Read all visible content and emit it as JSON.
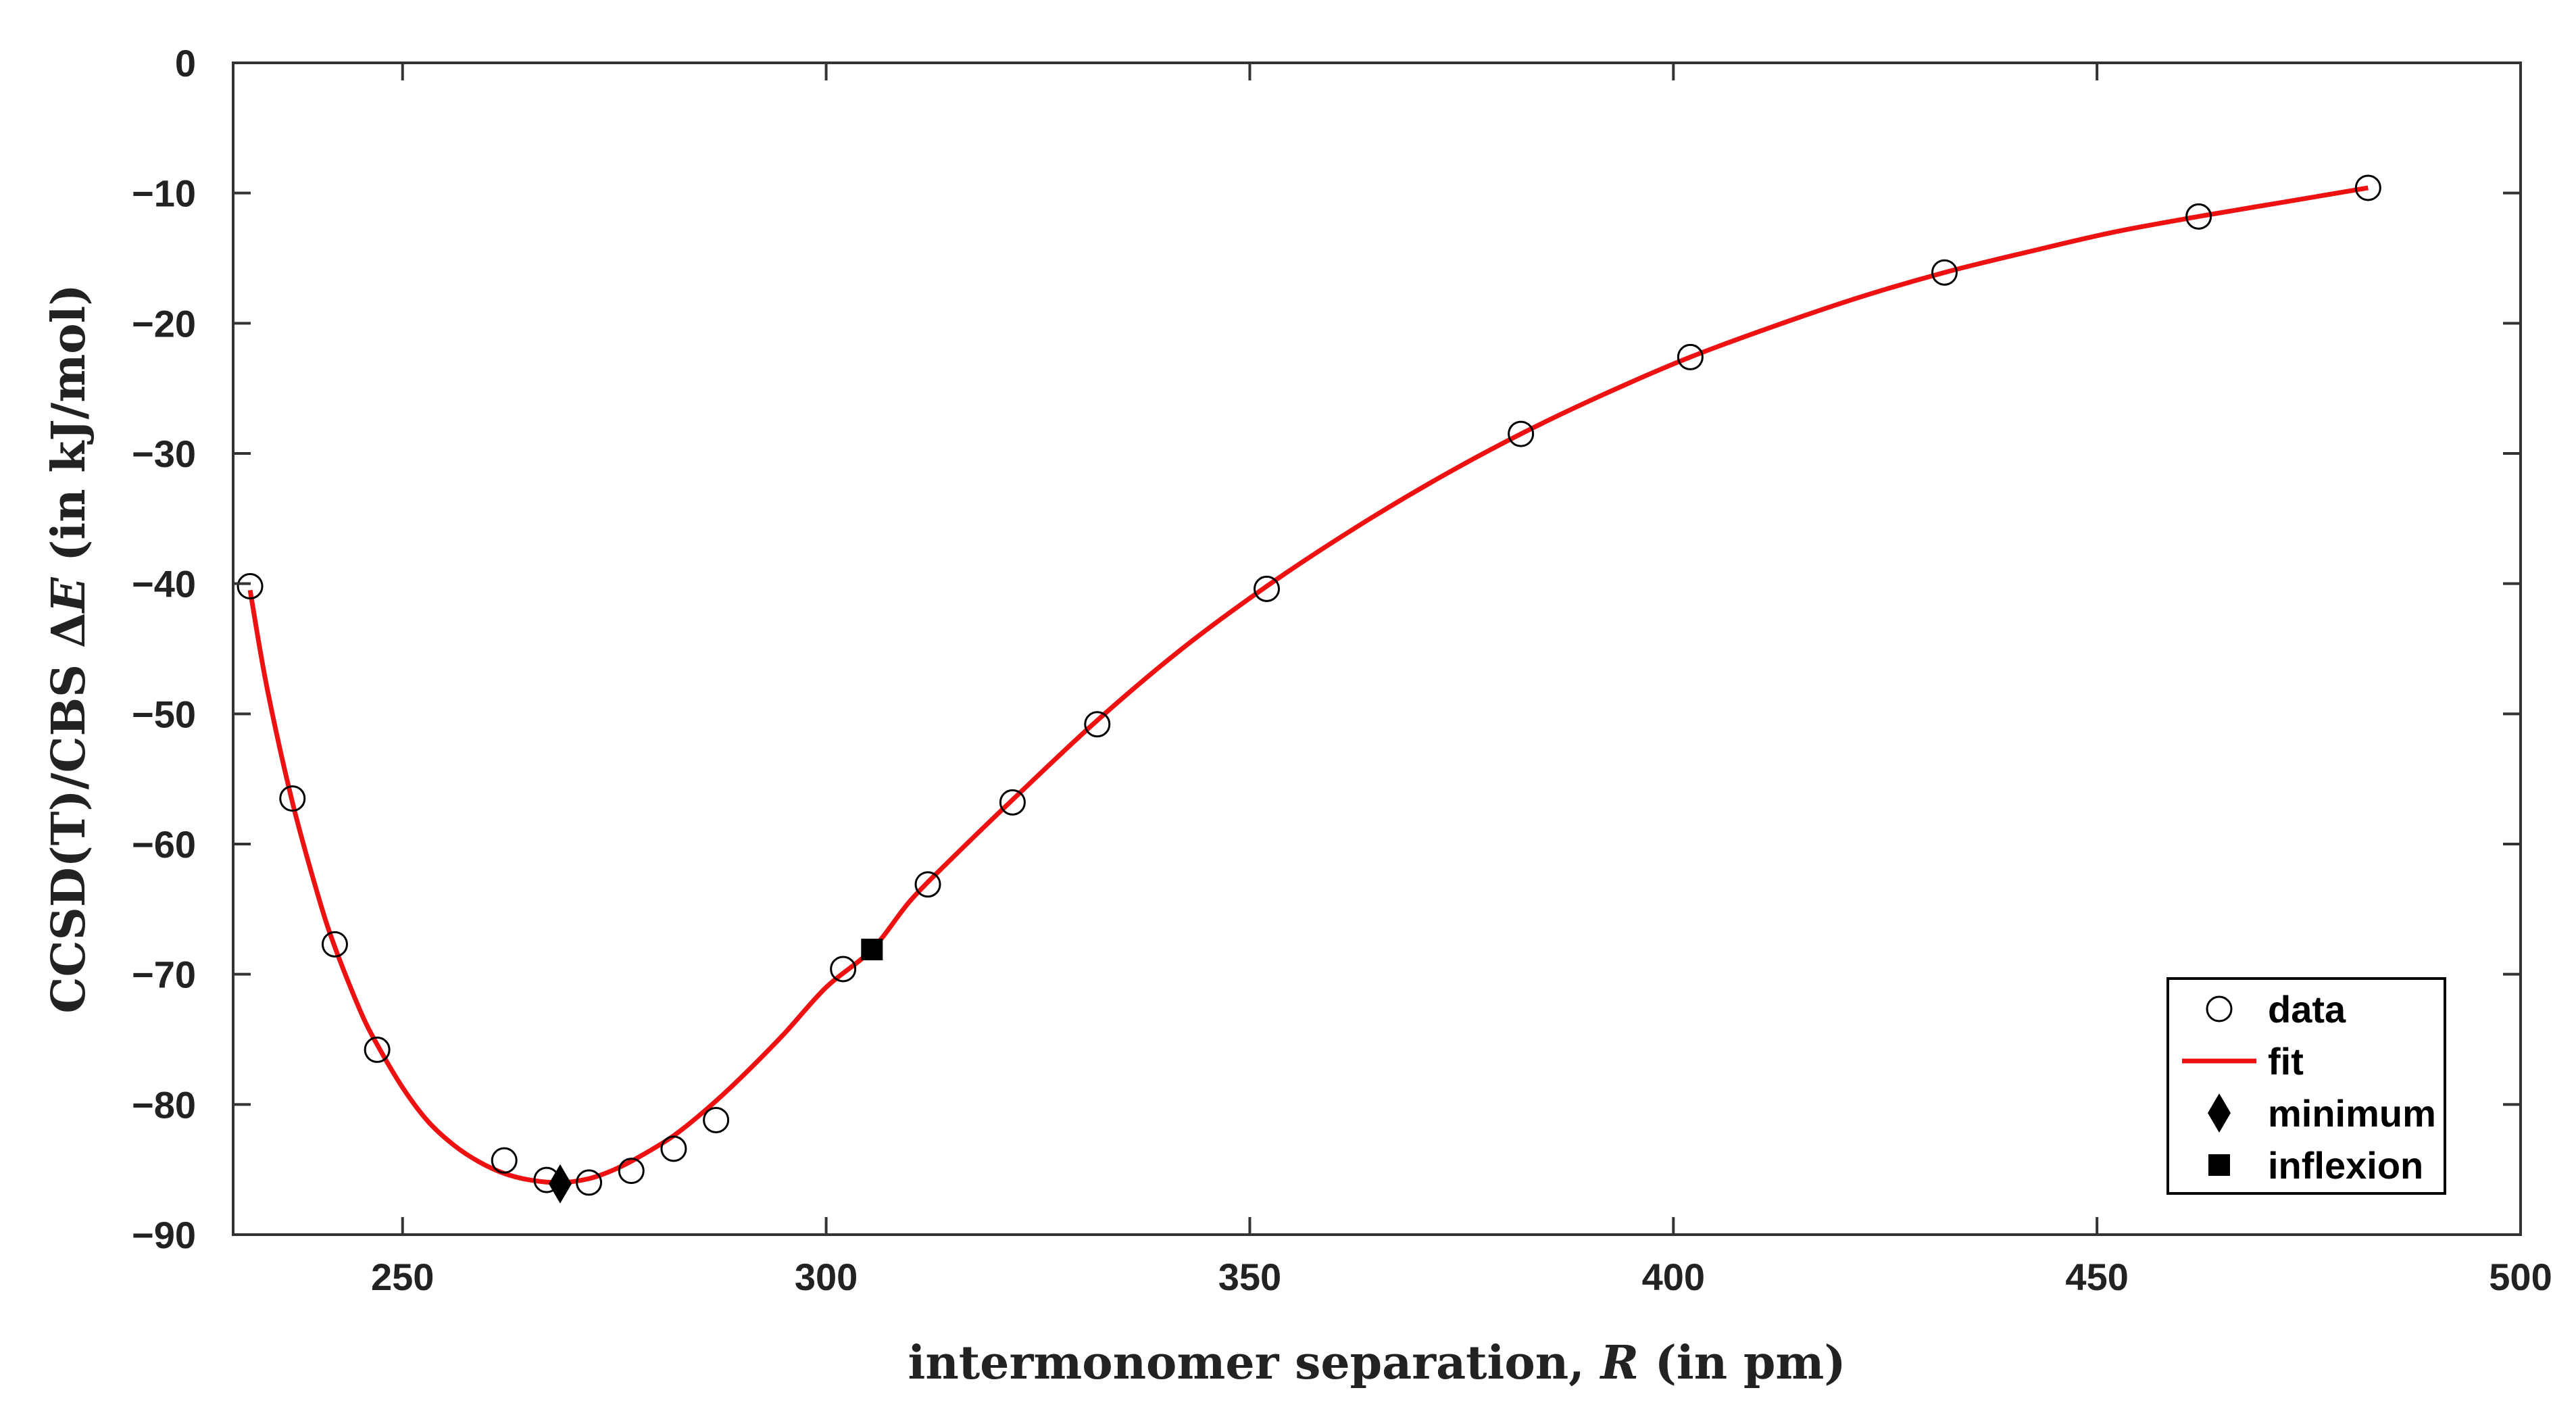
{
  "chart_data": {
    "type": "scatter",
    "xlabel_parts": {
      "before": "intermonomer separation, ",
      "var": "R",
      "after": " (in pm)"
    },
    "ylabel_parts": {
      "before": "CCSD(T)/CBS Δ",
      "var": "E",
      "after": " (in kJ/mol)"
    },
    "xlim": [
      230,
      500
    ],
    "ylim": [
      -90,
      0
    ],
    "xticks": [
      250,
      300,
      350,
      400,
      450,
      500
    ],
    "yticks": [
      0,
      -10,
      -20,
      -30,
      -40,
      -50,
      -60,
      -70,
      -80,
      -90
    ],
    "grid": false,
    "legend_position": "bottom-right",
    "series": [
      {
        "name": "data",
        "marker": "open-circle",
        "color": "#000000",
        "points": [
          [
            232,
            -40.2
          ],
          [
            237,
            -56.5
          ],
          [
            242,
            -67.7
          ],
          [
            247,
            -75.8
          ],
          [
            262,
            -84.3
          ],
          [
            267,
            -85.8
          ],
          [
            272,
            -86.0
          ],
          [
            277,
            -85.1
          ],
          [
            282,
            -83.4
          ],
          [
            287,
            -81.2
          ],
          [
            302,
            -69.6
          ],
          [
            312,
            -63.1
          ],
          [
            322,
            -56.8
          ],
          [
            332,
            -50.8
          ],
          [
            352,
            -40.4
          ],
          [
            382,
            -28.5
          ],
          [
            402,
            -22.6
          ],
          [
            432,
            -16.1
          ],
          [
            462,
            -11.8
          ],
          [
            482,
            -9.6
          ]
        ]
      },
      {
        "name": "fit",
        "marker": "line",
        "color": "#ee1111",
        "points": [
          [
            232,
            -40.5
          ],
          [
            234,
            -48.0
          ],
          [
            237,
            -56.8
          ],
          [
            240,
            -63.9
          ],
          [
            242,
            -67.9
          ],
          [
            245,
            -72.8
          ],
          [
            247,
            -75.4
          ],
          [
            250,
            -78.7
          ],
          [
            253,
            -81.3
          ],
          [
            256,
            -83.1
          ],
          [
            259,
            -84.4
          ],
          [
            262,
            -85.3
          ],
          [
            265,
            -85.8
          ],
          [
            268.6,
            -86.0
          ],
          [
            272,
            -85.7
          ],
          [
            275,
            -85.0
          ],
          [
            278,
            -84.0
          ],
          [
            282,
            -82.4
          ],
          [
            286,
            -80.3
          ],
          [
            290,
            -77.9
          ],
          [
            295,
            -74.6
          ],
          [
            300,
            -71.0
          ],
          [
            305.4,
            -68.1
          ],
          [
            310,
            -64.3
          ],
          [
            315,
            -61.0
          ],
          [
            322,
            -56.6
          ],
          [
            332,
            -50.5
          ],
          [
            342,
            -45.0
          ],
          [
            352,
            -40.2
          ],
          [
            362,
            -35.9
          ],
          [
            372,
            -32.0
          ],
          [
            382,
            -28.5
          ],
          [
            392,
            -25.4
          ],
          [
            402,
            -22.6
          ],
          [
            412,
            -20.2
          ],
          [
            422,
            -18.0
          ],
          [
            432,
            -16.1
          ],
          [
            442,
            -14.5
          ],
          [
            452,
            -13.0
          ],
          [
            462,
            -11.8
          ],
          [
            472,
            -10.7
          ],
          [
            482,
            -9.6
          ]
        ]
      },
      {
        "name": "minimum",
        "marker": "diamond",
        "color": "#000000",
        "points": [
          [
            268.6,
            -86.1
          ]
        ]
      },
      {
        "name": "inflexion",
        "marker": "square",
        "color": "#000000",
        "points": [
          [
            305.4,
            -68.1
          ]
        ]
      }
    ]
  }
}
